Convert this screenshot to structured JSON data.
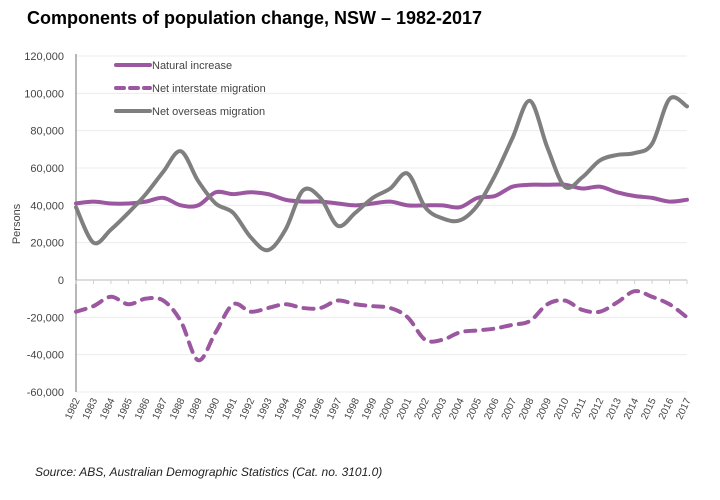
{
  "chart_data": {
    "type": "line",
    "title": "Components of population change, NSW – 1982-2017",
    "xlabel": "",
    "ylabel": "Persons",
    "ylim": [
      -60000,
      120000
    ],
    "yticks": [
      120000,
      100000,
      80000,
      60000,
      40000,
      20000,
      0,
      -20000,
      -40000,
      -60000
    ],
    "ytick_labels": [
      "120,000",
      "100,000",
      "80,000",
      "60,000",
      "40,000",
      "20,000",
      "0",
      "-20,000",
      "-40,000",
      "-60,000"
    ],
    "grid": "horizontal",
    "legend": "top-left",
    "x": [
      "1982",
      "1983",
      "1984",
      "1985",
      "1986",
      "1987",
      "1988",
      "1989",
      "1990",
      "1991",
      "1992",
      "1993",
      "1994",
      "1995",
      "1996",
      "1997",
      "1998",
      "1999",
      "2000",
      "2001",
      "2002",
      "2003",
      "2004",
      "2005",
      "2006",
      "2007",
      "2008",
      "2009",
      "2010",
      "2011",
      "2012",
      "2013",
      "2014",
      "2015",
      "2016",
      "2017"
    ],
    "series": [
      {
        "name": "Natural increase",
        "color": "#9b57a0",
        "style": "solid",
        "values": [
          41000,
          42000,
          41000,
          41000,
          42000,
          44000,
          40000,
          40000,
          47000,
          46000,
          47000,
          46000,
          43000,
          42000,
          42000,
          41000,
          40000,
          41000,
          42000,
          40000,
          40000,
          40000,
          39000,
          44000,
          45000,
          50000,
          51000,
          51000,
          51000,
          49000,
          50000,
          47000,
          45000,
          44000,
          42000,
          43000
        ]
      },
      {
        "name": "Net interstate migration",
        "color": "#9b57a0",
        "style": "dashed",
        "values": [
          -17000,
          -14000,
          -9000,
          -13000,
          -10000,
          -11000,
          -22000,
          -43000,
          -28000,
          -13000,
          -17000,
          -15000,
          -13000,
          -15000,
          -15000,
          -11000,
          -13000,
          -14000,
          -15000,
          -20000,
          -32000,
          -32000,
          -28000,
          -27000,
          -26000,
          -24000,
          -22000,
          -13000,
          -11000,
          -16000,
          -17000,
          -12000,
          -6000,
          -9000,
          -13000,
          -20000
        ]
      },
      {
        "name": "Net overseas migration",
        "color": "#7f7f7f",
        "style": "solid",
        "values": [
          39000,
          20000,
          27000,
          36000,
          46000,
          58000,
          69000,
          53000,
          41000,
          36000,
          23000,
          16000,
          27000,
          48000,
          44000,
          29000,
          36000,
          44000,
          49000,
          57000,
          39000,
          33000,
          32000,
          40000,
          56000,
          76000,
          96000,
          71000,
          50000,
          55000,
          64000,
          67000,
          68000,
          73000,
          97000,
          93000
        ]
      }
    ]
  },
  "source": "Source:  ABS, Australian Demographic Statistics (Cat. no. 3101.0)"
}
